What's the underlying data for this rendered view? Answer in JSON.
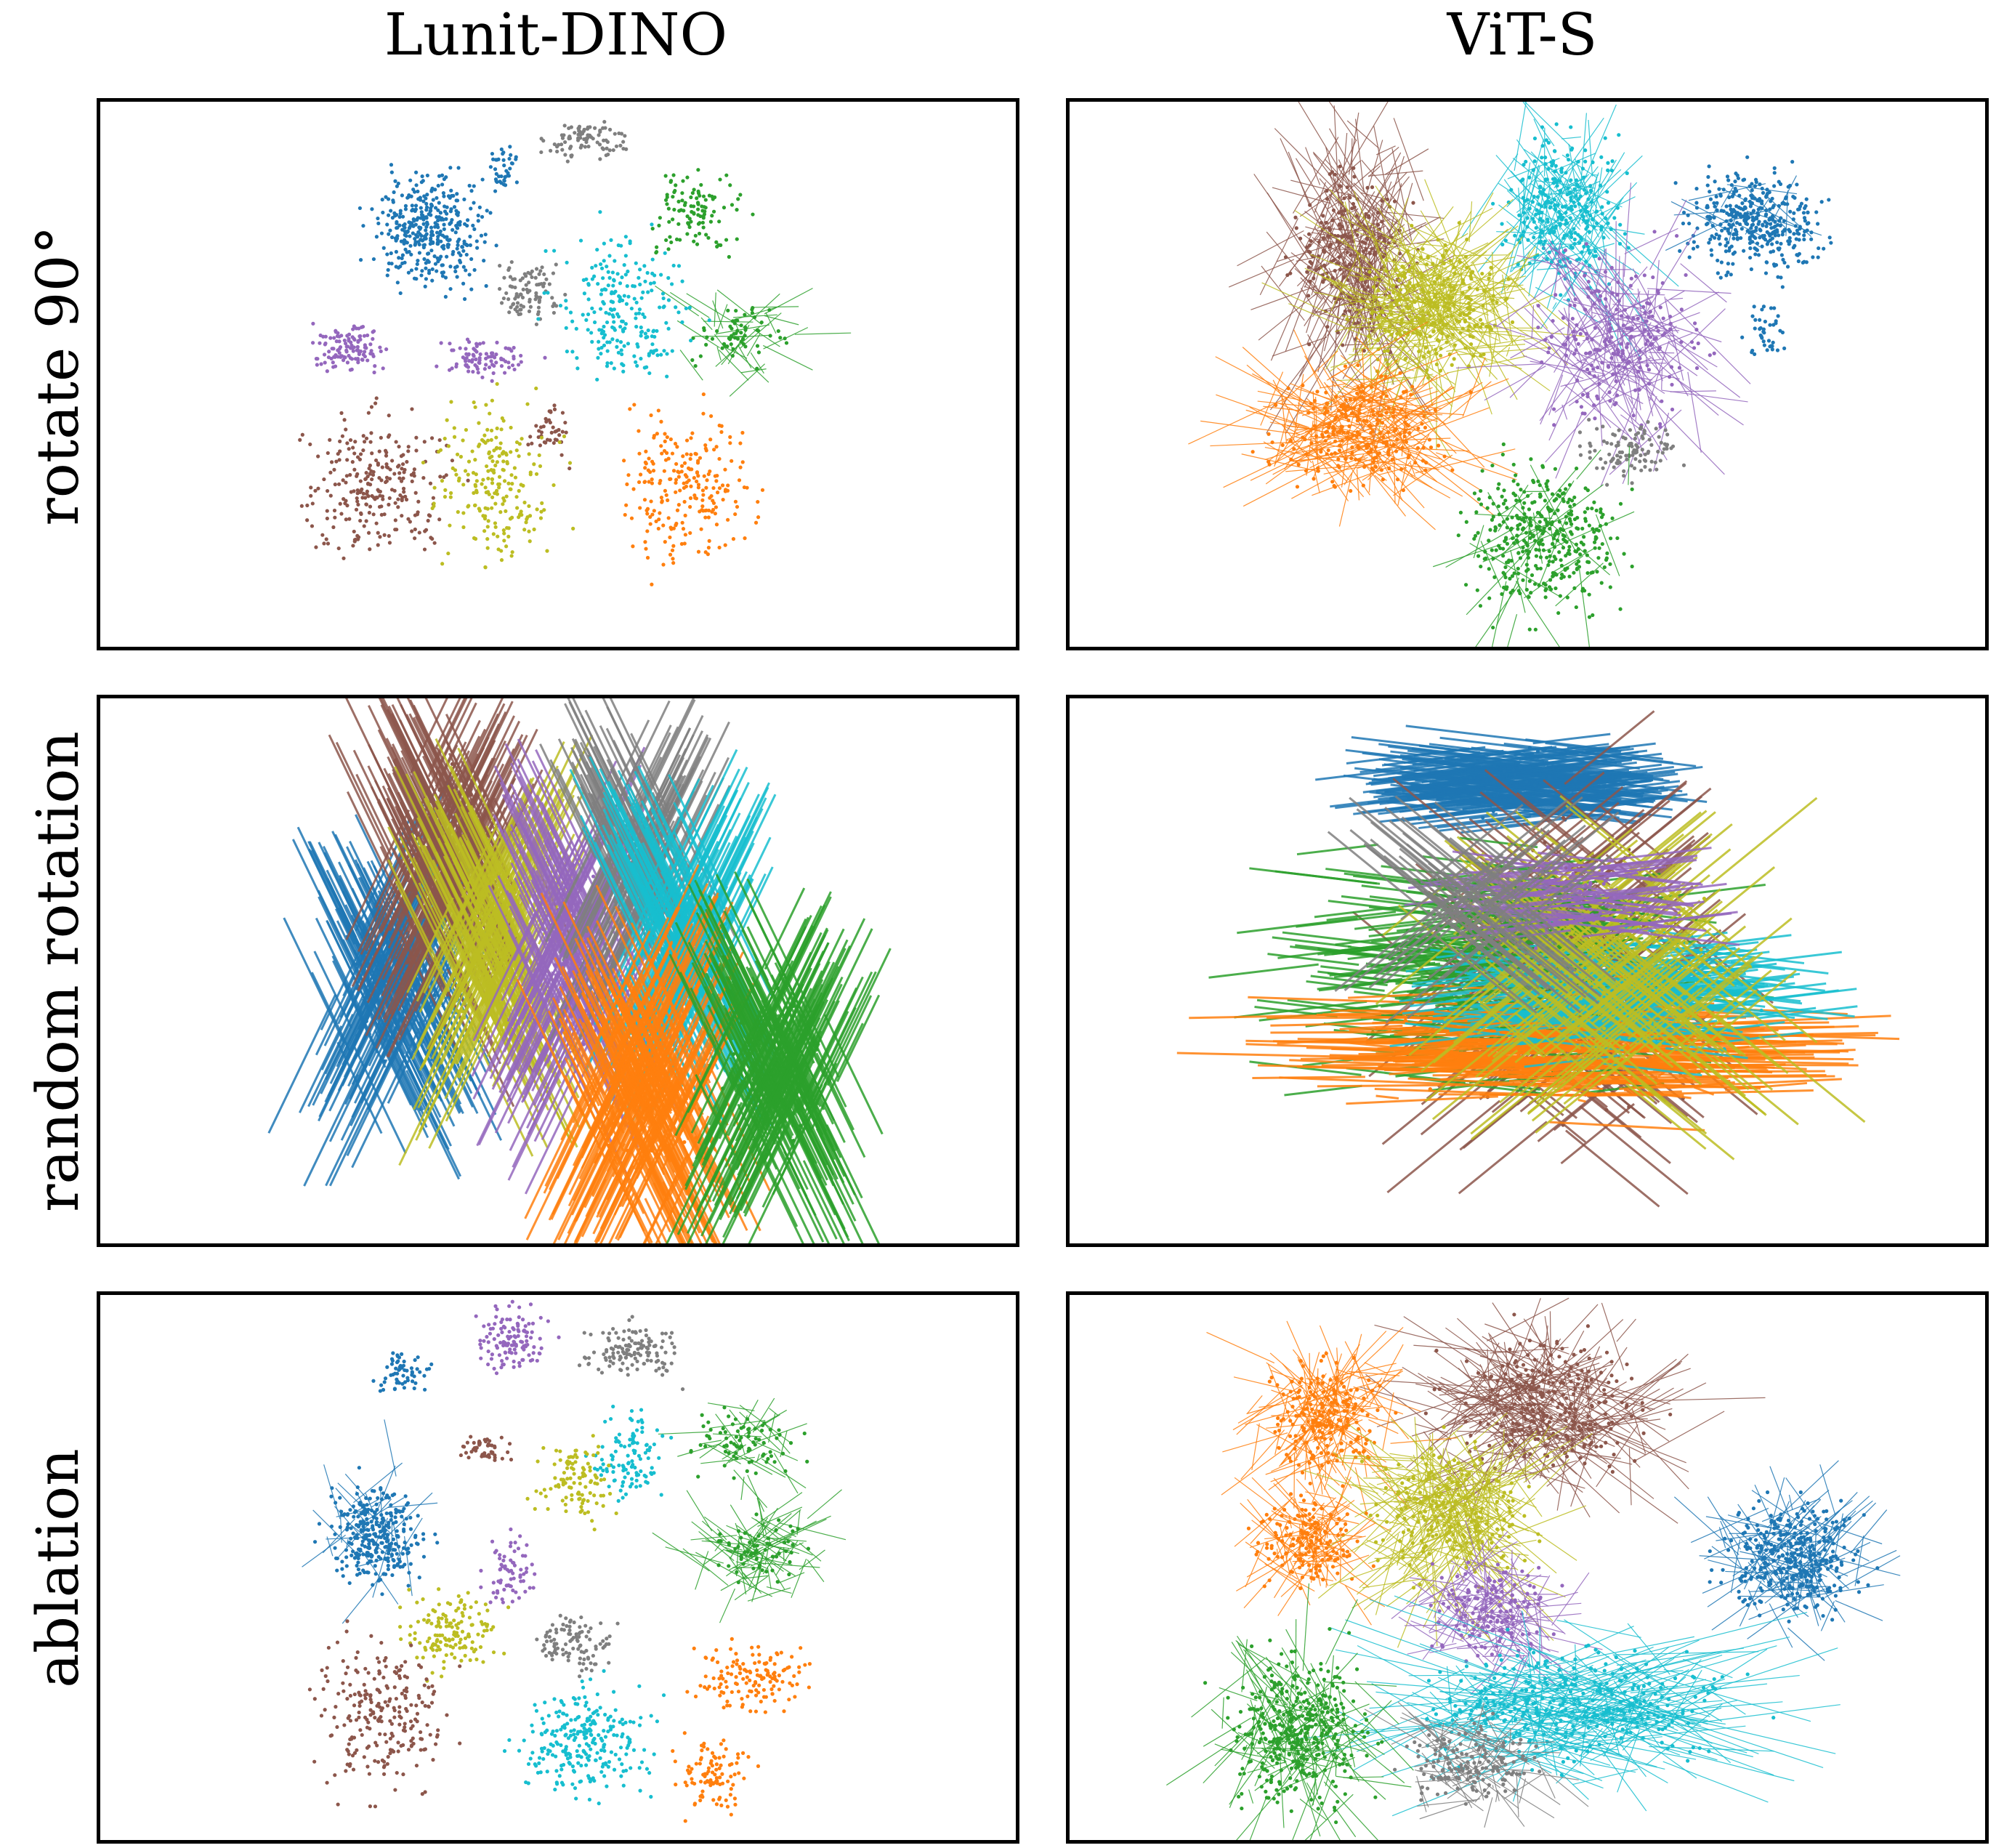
{
  "columns": [
    "Lunit-DINO",
    "ViT-S"
  ],
  "rows": [
    "rotate 90°",
    "random rotation",
    "ablation"
  ],
  "class_colors": [
    "#1f77b4",
    "#ff7f0e",
    "#2ca02c",
    "#8c564b",
    "#9467bd",
    "#7f7f7f",
    "#bcbd22",
    "#17becf"
  ],
  "chart_data": [
    {
      "type": "scatter",
      "row": "rotate 90°",
      "column": "Lunit-DINO",
      "xlabel": "",
      "ylabel": "",
      "ticks": false,
      "grid": false,
      "clusters": [
        {
          "color": "#1f77b4",
          "x": 0.36,
          "y": 0.76,
          "rx": 0.06,
          "ry": 0.1,
          "n": 380,
          "lines": 0
        },
        {
          "color": "#1f77b4",
          "x": 0.44,
          "y": 0.88,
          "rx": 0.02,
          "ry": 0.04,
          "n": 40,
          "lines": 0
        },
        {
          "color": "#7f7f7f",
          "x": 0.53,
          "y": 0.93,
          "rx": 0.04,
          "ry": 0.035,
          "n": 90,
          "lines": 0
        },
        {
          "color": "#7f7f7f",
          "x": 0.47,
          "y": 0.65,
          "rx": 0.035,
          "ry": 0.065,
          "n": 90,
          "lines": 0
        },
        {
          "color": "#2ca02c",
          "x": 0.65,
          "y": 0.8,
          "rx": 0.05,
          "ry": 0.08,
          "n": 110,
          "lines": 0
        },
        {
          "color": "#2ca02c",
          "x": 0.7,
          "y": 0.57,
          "rx": 0.05,
          "ry": 0.06,
          "n": 60,
          "lines": 40
        },
        {
          "color": "#17becf",
          "x": 0.57,
          "y": 0.62,
          "rx": 0.07,
          "ry": 0.13,
          "n": 230,
          "lines": 0
        },
        {
          "color": "#9467bd",
          "x": 0.27,
          "y": 0.55,
          "rx": 0.04,
          "ry": 0.045,
          "n": 120,
          "lines": 0
        },
        {
          "color": "#9467bd",
          "x": 0.42,
          "y": 0.53,
          "rx": 0.05,
          "ry": 0.035,
          "n": 90,
          "lines": 0
        },
        {
          "color": "#8c564b",
          "x": 0.3,
          "y": 0.3,
          "rx": 0.08,
          "ry": 0.13,
          "n": 260,
          "lines": 0
        },
        {
          "color": "#8c564b",
          "x": 0.49,
          "y": 0.4,
          "rx": 0.02,
          "ry": 0.05,
          "n": 40,
          "lines": 0
        },
        {
          "color": "#bcbd22",
          "x": 0.43,
          "y": 0.3,
          "rx": 0.06,
          "ry": 0.14,
          "n": 220,
          "lines": 0
        },
        {
          "color": "#ff7f0e",
          "x": 0.64,
          "y": 0.3,
          "rx": 0.07,
          "ry": 0.15,
          "n": 230,
          "lines": 0
        }
      ]
    },
    {
      "type": "scatter",
      "row": "rotate 90°",
      "column": "ViT-S",
      "xlabel": "",
      "ylabel": "",
      "ticks": false,
      "grid": false,
      "clusters": [
        {
          "color": "#1f77b4",
          "x": 0.75,
          "y": 0.78,
          "rx": 0.07,
          "ry": 0.09,
          "n": 380,
          "lines": 20
        },
        {
          "color": "#1f77b4",
          "x": 0.76,
          "y": 0.58,
          "rx": 0.02,
          "ry": 0.05,
          "n": 40,
          "lines": 0
        },
        {
          "color": "#17becf",
          "x": 0.54,
          "y": 0.8,
          "rx": 0.06,
          "ry": 0.13,
          "n": 280,
          "lines": 120
        },
        {
          "color": "#8c564b",
          "x": 0.31,
          "y": 0.72,
          "rx": 0.06,
          "ry": 0.16,
          "n": 220,
          "lines": 220
        },
        {
          "color": "#bcbd22",
          "x": 0.4,
          "y": 0.62,
          "rx": 0.08,
          "ry": 0.12,
          "n": 260,
          "lines": 260
        },
        {
          "color": "#9467bd",
          "x": 0.6,
          "y": 0.56,
          "rx": 0.08,
          "ry": 0.14,
          "n": 200,
          "lines": 160
        },
        {
          "color": "#ff7f0e",
          "x": 0.32,
          "y": 0.4,
          "rx": 0.09,
          "ry": 0.1,
          "n": 240,
          "lines": 200
        },
        {
          "color": "#7f7f7f",
          "x": 0.61,
          "y": 0.36,
          "rx": 0.05,
          "ry": 0.05,
          "n": 110,
          "lines": 0
        },
        {
          "color": "#2ca02c",
          "x": 0.52,
          "y": 0.2,
          "rx": 0.08,
          "ry": 0.13,
          "n": 380,
          "lines": 40
        }
      ]
    },
    {
      "type": "scatter",
      "row": "random rotation",
      "column": "Lunit-DINO",
      "xlabel": "",
      "ylabel": "",
      "ticks": false,
      "grid": false,
      "clusters": [
        {
          "color": "#1f77b4",
          "x": 0.32,
          "y": 0.48,
          "rx": 0.05,
          "ry": 0.14,
          "n": 40,
          "lines": 260
        },
        {
          "color": "#8c564b",
          "x": 0.38,
          "y": 0.7,
          "rx": 0.05,
          "ry": 0.17,
          "n": 30,
          "lines": 280
        },
        {
          "color": "#bcbd22",
          "x": 0.43,
          "y": 0.55,
          "rx": 0.05,
          "ry": 0.16,
          "n": 30,
          "lines": 240
        },
        {
          "color": "#9467bd",
          "x": 0.52,
          "y": 0.53,
          "rx": 0.04,
          "ry": 0.17,
          "n": 30,
          "lines": 240
        },
        {
          "color": "#7f7f7f",
          "x": 0.59,
          "y": 0.7,
          "rx": 0.04,
          "ry": 0.12,
          "n": 30,
          "lines": 200
        },
        {
          "color": "#17becf",
          "x": 0.64,
          "y": 0.56,
          "rx": 0.05,
          "ry": 0.12,
          "n": 30,
          "lines": 240
        },
        {
          "color": "#ff7f0e",
          "x": 0.6,
          "y": 0.27,
          "rx": 0.06,
          "ry": 0.16,
          "n": 30,
          "lines": 320
        },
        {
          "color": "#2ca02c",
          "x": 0.74,
          "y": 0.32,
          "rx": 0.05,
          "ry": 0.15,
          "n": 30,
          "lines": 300
        }
      ]
    },
    {
      "type": "scatter",
      "row": "random rotation",
      "column": "ViT-S",
      "xlabel": "",
      "ylabel": "",
      "ticks": false,
      "grid": false,
      "clusters": [
        {
          "color": "#1f77b4",
          "x": 0.49,
          "y": 0.85,
          "rx": 0.07,
          "ry": 0.07,
          "n": 30,
          "lines": 300
        },
        {
          "color": "#8c564b",
          "x": 0.55,
          "y": 0.5,
          "rx": 0.1,
          "ry": 0.25,
          "n": 30,
          "lines": 300
        },
        {
          "color": "#2ca02c",
          "x": 0.47,
          "y": 0.5,
          "rx": 0.16,
          "ry": 0.2,
          "n": 30,
          "lines": 320
        },
        {
          "color": "#ff7f0e",
          "x": 0.54,
          "y": 0.36,
          "rx": 0.19,
          "ry": 0.09,
          "n": 30,
          "lines": 320
        },
        {
          "color": "#17becf",
          "x": 0.6,
          "y": 0.46,
          "rx": 0.14,
          "ry": 0.1,
          "n": 30,
          "lines": 220
        },
        {
          "color": "#bcbd22",
          "x": 0.58,
          "y": 0.5,
          "rx": 0.12,
          "ry": 0.2,
          "n": 30,
          "lines": 220
        },
        {
          "color": "#9467bd",
          "x": 0.56,
          "y": 0.64,
          "rx": 0.06,
          "ry": 0.08,
          "n": 30,
          "lines": 80
        },
        {
          "color": "#7f7f7f",
          "x": 0.45,
          "y": 0.62,
          "rx": 0.06,
          "ry": 0.07,
          "n": 30,
          "lines": 80
        }
      ]
    },
    {
      "type": "scatter",
      "row": "ablation",
      "column": "Lunit-DINO",
      "xlabel": "",
      "ylabel": "",
      "ticks": false,
      "grid": false,
      "clusters": [
        {
          "color": "#1f77b4",
          "x": 0.3,
          "y": 0.56,
          "rx": 0.05,
          "ry": 0.09,
          "n": 300,
          "lines": 40
        },
        {
          "color": "#1f77b4",
          "x": 0.33,
          "y": 0.86,
          "rx": 0.03,
          "ry": 0.04,
          "n": 60,
          "lines": 0
        },
        {
          "color": "#9467bd",
          "x": 0.45,
          "y": 0.92,
          "rx": 0.04,
          "ry": 0.06,
          "n": 120,
          "lines": 0
        },
        {
          "color": "#7f7f7f",
          "x": 0.58,
          "y": 0.9,
          "rx": 0.05,
          "ry": 0.05,
          "n": 130,
          "lines": 0
        },
        {
          "color": "#2ca02c",
          "x": 0.7,
          "y": 0.73,
          "rx": 0.05,
          "ry": 0.06,
          "n": 80,
          "lines": 40
        },
        {
          "color": "#2ca02c",
          "x": 0.72,
          "y": 0.53,
          "rx": 0.06,
          "ry": 0.06,
          "n": 60,
          "lines": 90
        },
        {
          "color": "#17becf",
          "x": 0.58,
          "y": 0.7,
          "rx": 0.04,
          "ry": 0.08,
          "n": 110,
          "lines": 0
        },
        {
          "color": "#8c564b",
          "x": 0.42,
          "y": 0.72,
          "rx": 0.03,
          "ry": 0.025,
          "n": 50,
          "lines": 0
        },
        {
          "color": "#bcbd22",
          "x": 0.52,
          "y": 0.66,
          "rx": 0.04,
          "ry": 0.08,
          "n": 110,
          "lines": 0
        },
        {
          "color": "#9467bd",
          "x": 0.45,
          "y": 0.5,
          "rx": 0.03,
          "ry": 0.06,
          "n": 70,
          "lines": 0
        },
        {
          "color": "#bcbd22",
          "x": 0.38,
          "y": 0.38,
          "rx": 0.05,
          "ry": 0.07,
          "n": 150,
          "lines": 0
        },
        {
          "color": "#7f7f7f",
          "x": 0.52,
          "y": 0.36,
          "rx": 0.04,
          "ry": 0.05,
          "n": 100,
          "lines": 0
        },
        {
          "color": "#8c564b",
          "x": 0.31,
          "y": 0.23,
          "rx": 0.07,
          "ry": 0.13,
          "n": 240,
          "lines": 0
        },
        {
          "color": "#17becf",
          "x": 0.53,
          "y": 0.18,
          "rx": 0.07,
          "ry": 0.1,
          "n": 260,
          "lines": 0
        },
        {
          "color": "#ff7f0e",
          "x": 0.71,
          "y": 0.3,
          "rx": 0.06,
          "ry": 0.06,
          "n": 140,
          "lines": 0
        },
        {
          "color": "#ff7f0e",
          "x": 0.67,
          "y": 0.12,
          "rx": 0.04,
          "ry": 0.07,
          "n": 100,
          "lines": 0
        }
      ]
    },
    {
      "type": "scatter",
      "row": "ablation",
      "column": "ViT-S",
      "xlabel": "",
      "ylabel": "",
      "ticks": false,
      "grid": false,
      "clusters": [
        {
          "color": "#8c564b",
          "x": 0.52,
          "y": 0.8,
          "rx": 0.1,
          "ry": 0.12,
          "n": 260,
          "lines": 240
        },
        {
          "color": "#ff7f0e",
          "x": 0.28,
          "y": 0.78,
          "rx": 0.06,
          "ry": 0.1,
          "n": 200,
          "lines": 140
        },
        {
          "color": "#ff7f0e",
          "x": 0.26,
          "y": 0.55,
          "rx": 0.05,
          "ry": 0.08,
          "n": 160,
          "lines": 100
        },
        {
          "color": "#bcbd22",
          "x": 0.42,
          "y": 0.6,
          "rx": 0.08,
          "ry": 0.12,
          "n": 220,
          "lines": 220
        },
        {
          "color": "#1f77b4",
          "x": 0.79,
          "y": 0.52,
          "rx": 0.07,
          "ry": 0.1,
          "n": 340,
          "lines": 120
        },
        {
          "color": "#9467bd",
          "x": 0.46,
          "y": 0.42,
          "rx": 0.06,
          "ry": 0.08,
          "n": 150,
          "lines": 120
        },
        {
          "color": "#17becf",
          "x": 0.55,
          "y": 0.25,
          "rx": 0.16,
          "ry": 0.1,
          "n": 320,
          "lines": 240
        },
        {
          "color": "#7f7f7f",
          "x": 0.44,
          "y": 0.14,
          "rx": 0.07,
          "ry": 0.07,
          "n": 150,
          "lines": 80
        },
        {
          "color": "#2ca02c",
          "x": 0.25,
          "y": 0.2,
          "rx": 0.07,
          "ry": 0.13,
          "n": 380,
          "lines": 120
        }
      ]
    }
  ]
}
